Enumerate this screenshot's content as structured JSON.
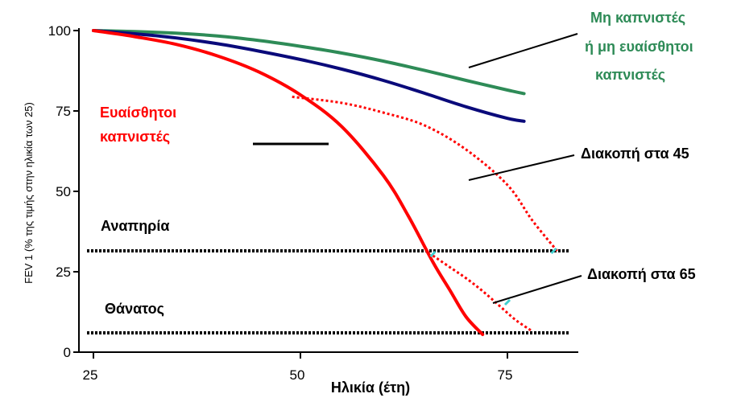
{
  "chart_data": {
    "type": "line",
    "title": "",
    "xlabel": "Ηλικία (έτη)",
    "ylabel": "FEV 1 (% της τιμής στην ηλικία των 25)",
    "xlim": [
      25,
      84
    ],
    "ylim": [
      0,
      100
    ],
    "xticks": [
      "25",
      "50",
      "75"
    ],
    "yticks": [
      "0",
      "25",
      "50",
      "75",
      "100"
    ],
    "grid": false,
    "colors": {
      "non_smokers": "#2e8b57",
      "smokers": "#0a0a7a",
      "sensitive": "#ff0000",
      "reference": "#000000",
      "marker": "#40d0d0"
    },
    "series": [
      {
        "key": "non_smokers",
        "name": "Μη καπνιστές ή μη ευαίσθητοι καπνιστές",
        "style": "solid",
        "x": [
          25,
          30,
          35,
          40,
          45,
          50,
          55,
          60,
          65,
          70,
          75,
          77
        ],
        "y": [
          100,
          99.7,
          99.2,
          98.3,
          96.9,
          95.1,
          93.0,
          90.5,
          87.6,
          84.5,
          81.5,
          80.4
        ]
      },
      {
        "key": "smokers",
        "name": "",
        "style": "solid",
        "x": [
          25,
          30,
          35,
          40,
          45,
          50,
          55,
          60,
          65,
          70,
          75,
          77
        ],
        "y": [
          100,
          99.0,
          97.7,
          95.9,
          93.6,
          91.0,
          88.0,
          84.5,
          80.5,
          76.3,
          72.7,
          71.8
        ]
      },
      {
        "key": "sensitive",
        "name": "Ευαίσθητοι καπνιστές",
        "style": "solid",
        "x": [
          25,
          30,
          35,
          40,
          45,
          50,
          55,
          60,
          63,
          66,
          68,
          70,
          72
        ],
        "y": [
          100,
          98.1,
          95.7,
          92.1,
          87.1,
          80.0,
          70.1,
          55.0,
          42.5,
          28.0,
          19.5,
          11.0,
          5.5
        ]
      },
      {
        "key": "quit_45",
        "name": "Διακοπή στα 45",
        "style": "dotted",
        "x": [
          49,
          55,
          60,
          65,
          70,
          75,
          78,
          81
        ],
        "y": [
          79.4,
          77.5,
          74.5,
          70.5,
          63.0,
          52.0,
          41.0,
          31.5
        ]
      },
      {
        "key": "quit_65",
        "name": "Διακοπή στα 65",
        "style": "dotted",
        "x": [
          66,
          68,
          70,
          72,
          74,
          76,
          78
        ],
        "y": [
          30.0,
          26.5,
          23.0,
          19.0,
          14.5,
          10.0,
          6.5
        ]
      }
    ],
    "reference_lines": [
      {
        "label": "Αναπηρία",
        "y": 31.5
      },
      {
        "label": "Θάνατος",
        "y": 6.0
      }
    ],
    "annotations": {
      "non_smokers": [
        "Μη καπνιστές",
        "ή μη ευαίσθητοι",
        "καπνιστές"
      ],
      "sensitive": [
        "Ευαίσθητοι",
        "καπνιστές"
      ],
      "quit_45": "Διακοπή στα 45",
      "quit_65": "Διακοπή στα 65"
    }
  }
}
